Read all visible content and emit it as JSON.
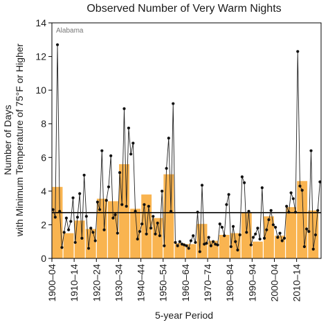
{
  "chart_data": {
    "type": "bar",
    "title": "Observed Number of Very Warm Nights",
    "region_label": "Alabama",
    "xlabel": "5-year Period",
    "ylabel_line1": "Number of Days",
    "ylabel_line2": "with Minimum Temperature of 75°F or Higher",
    "ylim": [
      0,
      14
    ],
    "yticks": [
      0,
      2,
      4,
      6,
      8,
      10,
      12,
      14
    ],
    "grid": false,
    "categories": [
      "1900–04",
      "1905–09",
      "1910–14",
      "1915–19",
      "1920–24",
      "1925–29",
      "1930–34",
      "1935–39",
      "1940–44",
      "1945–49",
      "1950–54",
      "1955–59",
      "1960–64",
      "1965–69",
      "1970–74",
      "1975–79",
      "1980–84",
      "1985–89",
      "1990–94",
      "1995–99",
      "2000–04",
      "2005–09",
      "2010–14",
      "2015–19"
    ],
    "xtick_labels": [
      "1900–04",
      "1910–14",
      "1920–24",
      "1930–34",
      "1940–44",
      "1950–54",
      "1960–64",
      "1970–74",
      "1980–84",
      "1990–94",
      "2000–04",
      "2010–14"
    ],
    "xtick_indices": [
      0,
      2,
      4,
      6,
      8,
      10,
      12,
      14,
      16,
      18,
      20,
      22
    ],
    "bar_values": [
      4.25,
      1.5,
      2.25,
      1.75,
      3.55,
      3.4,
      5.6,
      2.95,
      3.8,
      2.4,
      5.0,
      0.9,
      0.85,
      2.05,
      1.05,
      1.4,
      1.5,
      2.7,
      1.0,
      2.5,
      1.35,
      3.05,
      4.6,
      2.85
    ],
    "bar_color": "#F9B450",
    "average_line": 2.72,
    "annual": {
      "x_start": 1900,
      "values": [
        2.9,
        2.45,
        12.7,
        2.8,
        0.65,
        1.55,
        2.4,
        1.7,
        2.2,
        3.6,
        0.95,
        2.45,
        3.85,
        1.2,
        4.95,
        2.5,
        0.6,
        1.8,
        1.55,
        1.05,
        3.35,
        2.9,
        6.4,
        1.7,
        3.45,
        4.25,
        6.1,
        2.4,
        2.6,
        1.5,
        5.1,
        3.2,
        8.9,
        3.1,
        7.75,
        6.2,
        6.85,
        2.8,
        1.15,
        1.6,
        2.05,
        3.2,
        1.45,
        3.1,
        1.8,
        2.5,
        1.45,
        2.1,
        1.35,
        4.0,
        0.75,
        5.35,
        7.15,
        2.8,
        9.2,
        0.95,
        0.75,
        1.0,
        0.85,
        0.8,
        0.75,
        0.6,
        1.05,
        1.35,
        0.95,
        2.75,
        0.4,
        4.35,
        0.85,
        0.9,
        1.25,
        0.75,
        1.0,
        0.85,
        0.8,
        2.05,
        1.85,
        1.35,
        3.2,
        3.8,
        0.7,
        1.9,
        1.0,
        0.5,
        1.4,
        4.85,
        4.5,
        1.55,
        2.8,
        0.8,
        1.25,
        1.45,
        1.8,
        1.15,
        4.2,
        1.2,
        1.7,
        2.3,
        2.85,
        2.0,
        1.85,
        1.25,
        1.5,
        1.05,
        1.2,
        3.1,
        2.75,
        3.9,
        3.55,
        2.75,
        12.3,
        4.3,
        4.05,
        0.7,
        1.75,
        1.6,
        6.4,
        0.55,
        1.4,
        2.85,
        4.55
      ],
      "line_color": "#222222",
      "marker_color": "#111111"
    }
  }
}
